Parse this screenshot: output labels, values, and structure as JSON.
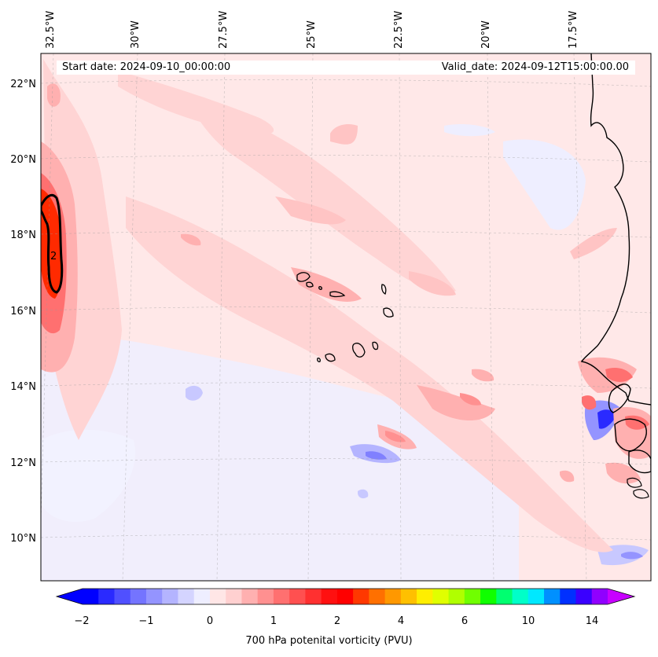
{
  "map": {
    "start_date": "Start date: 2024-09-10_00:00:00",
    "valid_date": "Valid_date: 2024-09-12T15:00:00.00",
    "lon_labels": [
      "32.5°W",
      "30°W",
      "27.5°W",
      "25°W",
      "22.5°W",
      "20°W",
      "17.5°W"
    ],
    "lat_labels": [
      "22°N",
      "20°N",
      "18°N",
      "16°N",
      "14°N",
      "12°N",
      "10°N"
    ],
    "contour_label": "2"
  },
  "colorbar": {
    "label": "700 hPa potenital vorticity (PVU)",
    "ticks": [
      "−2",
      "−1",
      "0",
      "1",
      "2",
      "4",
      "6",
      "10",
      "14"
    ],
    "colors": [
      "#0000ff",
      "#2a2aff",
      "#5050ff",
      "#7474ff",
      "#9494ff",
      "#b4b4ff",
      "#d4d4ff",
      "#eeeeff",
      "#ffe6e6",
      "#ffd0d0",
      "#ffb0b0",
      "#ff9090",
      "#ff7070",
      "#ff5050",
      "#ff3030",
      "#ff1010",
      "#ff0000",
      "#ff3800",
      "#ff7000",
      "#ff9800",
      "#ffc000",
      "#ffee00",
      "#e0ff00",
      "#b0ff00",
      "#70ff00",
      "#10ff00",
      "#00ff70",
      "#00ffc8",
      "#00e8ff",
      "#0090ff",
      "#0030ff",
      "#3a00ff",
      "#9000ff"
    ],
    "under_color": "#0000ff",
    "over_color": "#c800ff"
  },
  "colors": {
    "background_field": "#ffe8e8",
    "neg_light": "#eeeeff",
    "neg_mid": "#c8c8ff",
    "neg_strong": "#8080ff",
    "pos_light": "#ffd4d4",
    "pos_mid": "#ffb0b0",
    "pos_strong": "#ff7070",
    "pos_max": "#ff2a00",
    "coastline": "#000000"
  }
}
